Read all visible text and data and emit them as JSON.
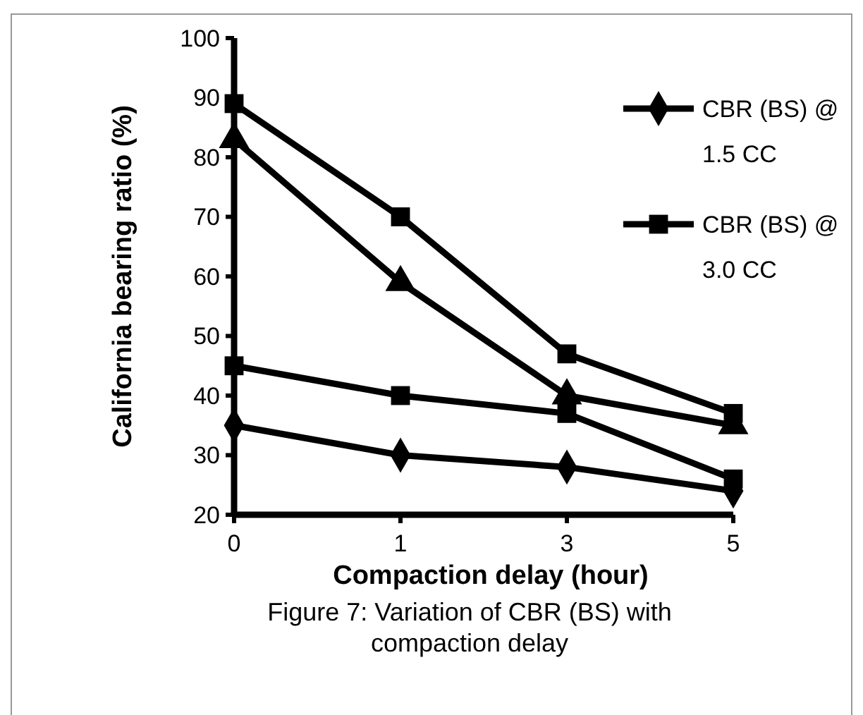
{
  "chart_data": {
    "type": "line",
    "xlabel": "Compaction delay (hour)",
    "ylabel": "California bearing ratio (%)",
    "categories": [
      "0",
      "1",
      "3",
      "5"
    ],
    "ylim": [
      20,
      100
    ],
    "yticks": [
      20,
      30,
      40,
      50,
      60,
      70,
      80,
      90,
      100
    ],
    "grid": false,
    "legend": "top right",
    "line_style": "solid",
    "series": [
      {
        "name": "CBR (BS) @ 1.5 CC",
        "color": "#000000",
        "marker": "diamond",
        "values": [
          35,
          30,
          28,
          24
        ]
      },
      {
        "name": "CBR (BS) @ 3.0 CC",
        "color": "#000000",
        "marker": "square",
        "values": [
          45,
          40,
          37,
          26
        ]
      },
      {
        "color": "#000000",
        "marker": "triangle",
        "values": [
          83,
          59,
          40,
          35
        ]
      },
      {
        "color": "#000000",
        "marker": "square",
        "values": [
          89,
          70,
          47,
          37
        ]
      }
    ],
    "annotations": [
      "Figure 7: Variation of CBR (BS) with compaction delay"
    ]
  }
}
